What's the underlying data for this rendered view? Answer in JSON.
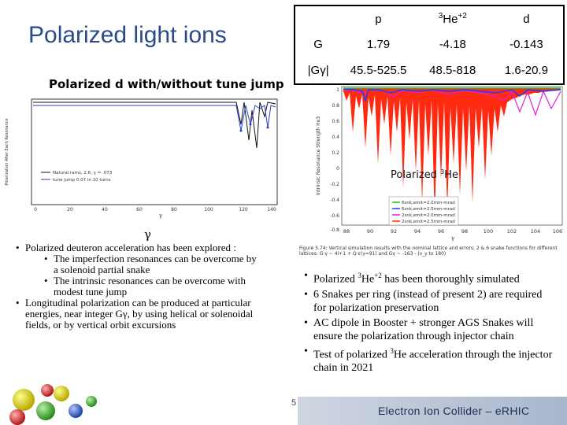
{
  "title": "Polarized light ions",
  "subtitle": "Polarized d with/without tune jump",
  "table": {
    "headers": [
      "p",
      "He",
      "d"
    ],
    "he_super_pre": "3",
    "he_super_post": "+2",
    "rows": [
      {
        "label": "G",
        "values": [
          "1.79",
          "-4.18",
          "-0.143"
        ]
      },
      {
        "label": "|Gγ|",
        "values": [
          "45.5-525.5",
          "48.5-818",
          "1.6-20.9"
        ]
      }
    ]
  },
  "left_plot": {
    "ylabel": "Polarization After Each Resonance",
    "xlabel": "γ",
    "xticks": [
      "0",
      "20",
      "40",
      "60",
      "80",
      "100",
      "120",
      "140"
    ],
    "legend": [
      "Natural rams, 2.6, γ = .073",
      "tune jump 0.07 in 10 turns"
    ]
  },
  "gamma_label": "γ",
  "right_plot": {
    "ylabel": "Intrinsic Resonance Strength He3",
    "yticks": [
      "1",
      "0.8",
      "0.6",
      "0.4",
      "0.2",
      "0",
      "-0.2",
      "-0.4",
      "-0.6",
      "-0.8"
    ],
    "xticks": [
      "88",
      "90",
      "92",
      "94",
      "96",
      "98",
      "100",
      "102",
      "104",
      "106"
    ],
    "xlabel": "γ",
    "annotation_pre": "Polarized ",
    "annotation_sup": "3",
    "annotation_post": "He",
    "legend": [
      "6snk,emit=2.0mm-mrad",
      "6snk,emit=2.5mm-mrad",
      "2snk,emit=2.0mm-mrad",
      "2snk,emit=2.5mm-mrad"
    ],
    "colors": {
      "green": "#20c020",
      "blue": "#1e3cff",
      "magenta": "#e020e0",
      "red": "#ff2a10"
    }
  },
  "caption": "Figure 5.74: Vertical simulation results with the nominal lattice and errors; 2 & 6 snake functions for different lattices: G·γ ~ 4i+1 + Q·ε(γ=91) and Gγ ~ -163 - (ν_y to 180)",
  "left_bullets": [
    {
      "level": 1,
      "text": "Polarized deuteron acceleration has been explored :"
    },
    {
      "level": 2,
      "text": "The imperfection resonances can be overcome by a solenoid partial snake"
    },
    {
      "level": 2,
      "text": "The intrinsic resonances can be overcome with modest tune jump"
    },
    {
      "level": 1,
      "text": "Longitudinal polarization can be produced at particular energies, near integer Gγ, by using helical or solenoidal fields, or by vertical orbit excursions"
    }
  ],
  "right_bullets": [
    {
      "pre": "Polarized ",
      "sup": "3",
      "mid": "He",
      "sup2": "+2",
      "post": " has been thoroughly simulated"
    },
    {
      "pre": "6 Snakes per ring (instead of present 2) are required for polarization preservation",
      "sup": "",
      "mid": "",
      "sup2": "",
      "post": ""
    },
    {
      "pre": "AC dipole in Booster + stronger AGS Snakes will ensure the polarization through injector chain",
      "sup": "",
      "mid": "",
      "sup2": "",
      "post": ""
    },
    {
      "pre": "Test of polarized ",
      "sup": "3",
      "mid": "He acceleration through the injector chain in 2021",
      "sup2": "",
      "post": ""
    }
  ],
  "page_number": "5",
  "footer": "Electron Ion Collider – eRHIC"
}
